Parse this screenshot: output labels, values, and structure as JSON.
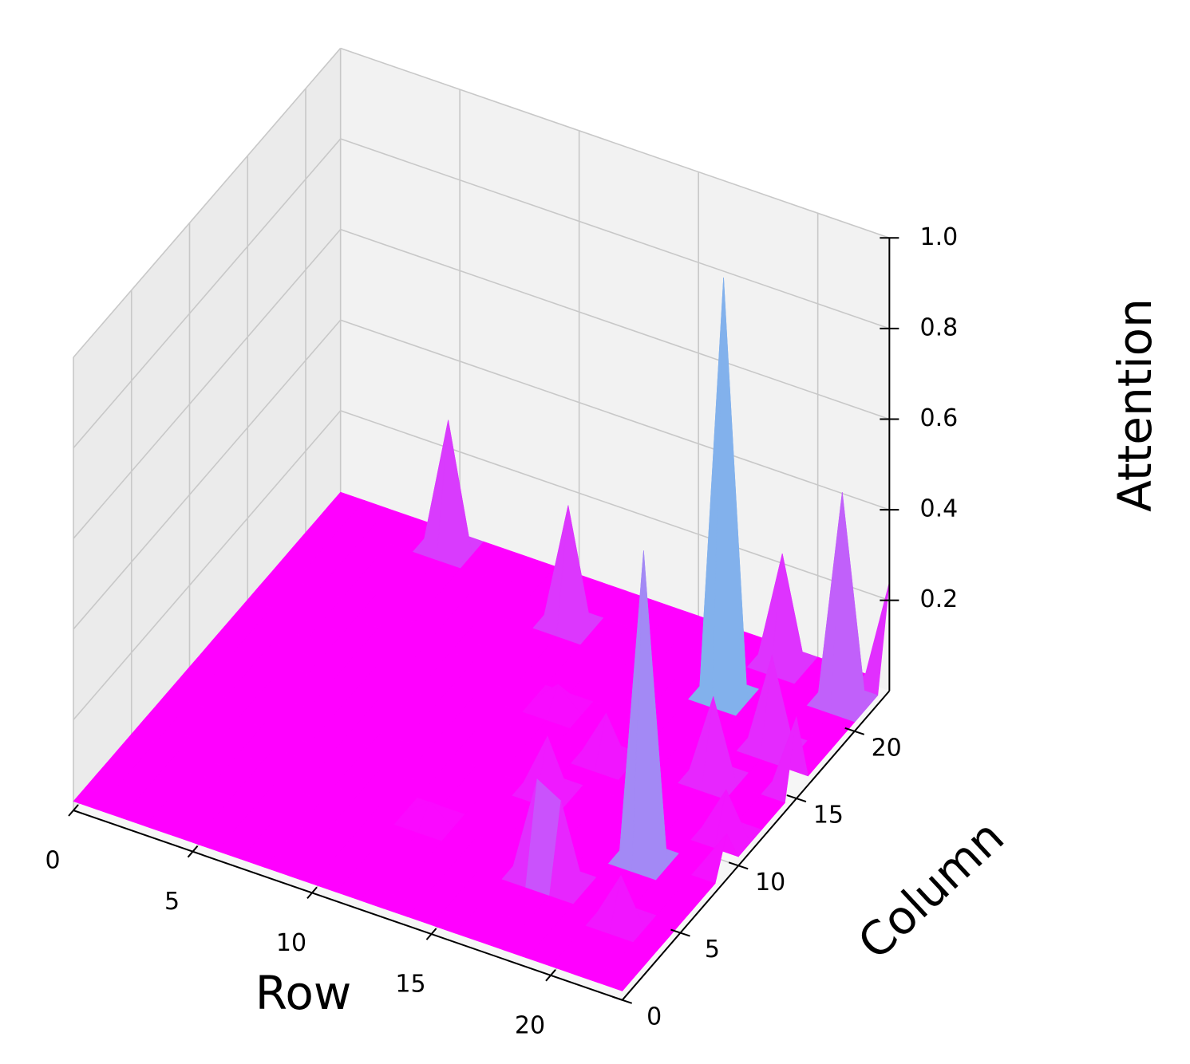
{
  "chart_data": {
    "type": "surface3d",
    "title": "",
    "xlabel": "Row",
    "ylabel": "Column",
    "zlabel": "Attention",
    "colormap": "rainbow",
    "xlim": [
      0,
      23
    ],
    "ylim": [
      0,
      23
    ],
    "zlim": [
      0,
      1.0
    ],
    "x_ticks": [
      0,
      5,
      10,
      15,
      20
    ],
    "y_ticks": [
      0,
      5,
      10,
      15,
      20
    ],
    "z_ticks": [
      0.2,
      0.4,
      0.6,
      0.8,
      1.0
    ],
    "x_tick_labels": [
      "0",
      "5",
      "10",
      "15",
      "20"
    ],
    "y_tick_labels": [
      "0",
      "5",
      "10",
      "15",
      "20"
    ],
    "z_tick_labels": [
      "0.2",
      "0.4",
      "0.6",
      "0.8",
      "1.0"
    ],
    "grid": true,
    "baseline_value": 0.02,
    "peaks": [
      {
        "row": 18,
        "col": 19,
        "value": 0.94
      },
      {
        "row": 20,
        "col": 8,
        "value": 0.7
      },
      {
        "row": 22,
        "col": 21,
        "value": 0.48
      },
      {
        "row": 5,
        "col": 22,
        "value": 0.3
      },
      {
        "row": 11,
        "col": 20,
        "value": 0.28
      },
      {
        "row": 19,
        "col": 22,
        "value": 0.26
      },
      {
        "row": 23,
        "col": 23,
        "value": 0.24
      },
      {
        "row": 17,
        "col": 5,
        "value": 0.23
      },
      {
        "row": 21,
        "col": 17,
        "value": 0.22
      },
      {
        "row": 20,
        "col": 14,
        "value": 0.2
      },
      {
        "row": 18,
        "col": 5,
        "value": 0.2
      },
      {
        "row": 23,
        "col": 15,
        "value": 0.18
      },
      {
        "row": 15,
        "col": 10,
        "value": 0.14
      },
      {
        "row": 16,
        "col": 13,
        "value": 0.12
      },
      {
        "row": 22,
        "col": 11,
        "value": 0.12
      },
      {
        "row": 21,
        "col": 4,
        "value": 0.12
      },
      {
        "row": 12,
        "col": 6,
        "value": 0.06
      },
      {
        "row": 13,
        "col": 15,
        "value": 0.07
      },
      {
        "row": 23,
        "col": 9,
        "value": 0.1
      }
    ]
  }
}
